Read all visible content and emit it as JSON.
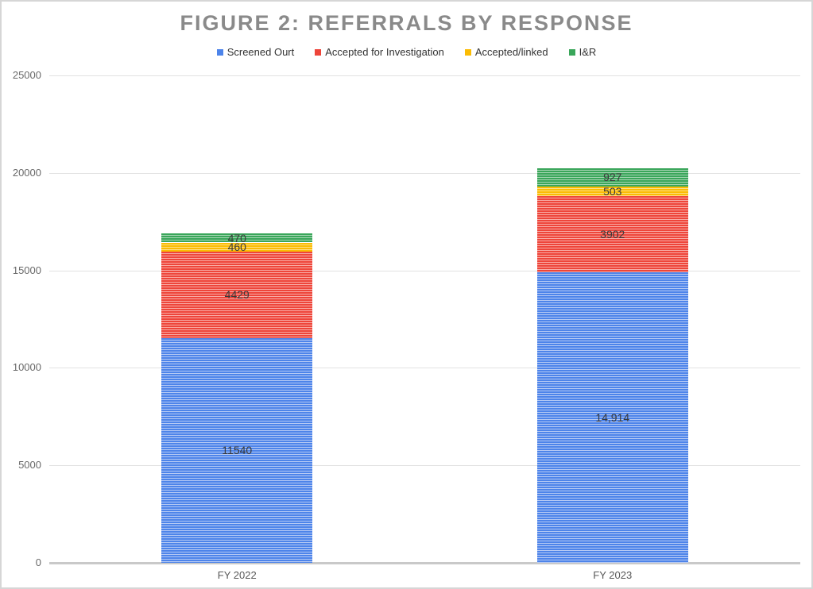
{
  "title": "FIGURE 2: REFERRALS BY RESPONSE",
  "chart_data": {
    "type": "bar",
    "stacked": true,
    "title": "FIGURE 2: REFERRALS BY RESPONSE",
    "categories": [
      "FY 2022",
      "FY 2023"
    ],
    "series": [
      {
        "name": "Screened Ourt",
        "color": "#4d84ea",
        "light_stripe": "#b5c9f4",
        "values": [
          11540,
          14914
        ],
        "labels": [
          "11540",
          "14,914"
        ]
      },
      {
        "name": "Accepted for Investigation",
        "color": "#ee453a",
        "light_stripe": "#f8aba5",
        "values": [
          4429,
          3902
        ],
        "labels": [
          "4429",
          "3902"
        ]
      },
      {
        "name": "Accepted/linked",
        "color": "#fbbc04",
        "light_stripe": "#fddf87",
        "values": [
          460,
          503
        ],
        "labels": [
          "460",
          "503"
        ]
      },
      {
        "name": "I&R",
        "color": "#3aa65a",
        "light_stripe": "#a6d5b3",
        "values": [
          470,
          927
        ],
        "labels": [
          "470",
          "927"
        ]
      }
    ],
    "xlabel": "",
    "ylabel": "",
    "ylim": [
      0,
      25000
    ],
    "yticks": [
      0,
      5000,
      10000,
      15000,
      20000,
      25000
    ],
    "ytick_labels": [
      "0",
      "5000",
      "10000",
      "15000",
      "20000",
      "25000"
    ],
    "grid": true,
    "legend_position": "top",
    "bar_fill_pattern": "horizontal-stripes"
  },
  "colors": {
    "grid": "#e2e2e2",
    "axis_baseline": "#c9c9c9",
    "title_text": "#8a8a8a",
    "tick_text": "#696969",
    "value_label_text": "#3a3a3a"
  }
}
